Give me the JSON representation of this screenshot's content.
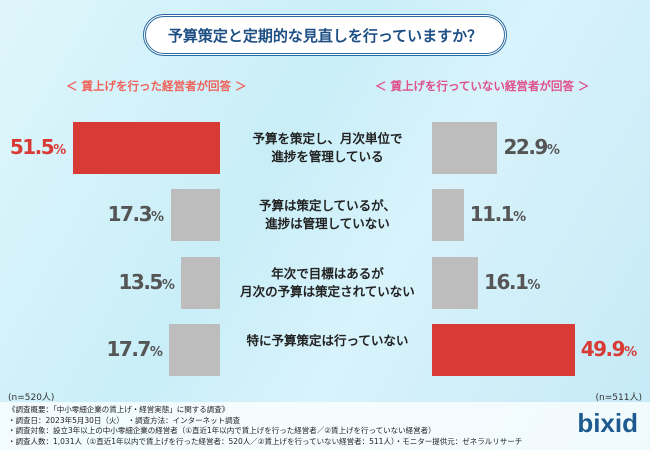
{
  "chart_data": {
    "type": "bar",
    "title": "予算策定と定期的な見直しを行っていますか？",
    "categories": [
      "予算を策定し、月次単位で\n進捗を管理している",
      "予算は策定しているが、\n進捗は管理していない",
      "年次で目標はあるが\n月次の予算は策定されていない",
      "特に予算策定は行っていない"
    ],
    "series": [
      {
        "name": "＜ 賃上げを行った経営者が回答 ＞",
        "values": [
          51.5,
          17.3,
          13.5,
          17.7
        ],
        "n": "(n=520人)"
      },
      {
        "name": "＜ 賃上げを行っていない経営者が回答 ＞",
        "values": [
          22.9,
          11.1,
          16.1,
          49.9
        ],
        "n": "(n=511人)"
      }
    ],
    "highlight_color": "#d83b36",
    "bar_color": "#bdbdbd",
    "unit": "%"
  },
  "footer": [
    "《調査概要：「中小零細企業の賃上げ・経営実態」に関する調査》",
    "・調査日：2023年5月30日（火）　・調査方法：インターネット調査",
    "・調査対象：設立3年以上の中小零細企業の経営者（①直近1年以内で賃上げを行った経営者／②賃上げを行っていない経営者）",
    "・調査人数：1,031人（①直近1年以内で賃上げを行った経営者：520人／②賃上げを行っていない経営者：511人）・モニター提供元：ゼネラルリサーチ"
  ],
  "logo": "bixid"
}
